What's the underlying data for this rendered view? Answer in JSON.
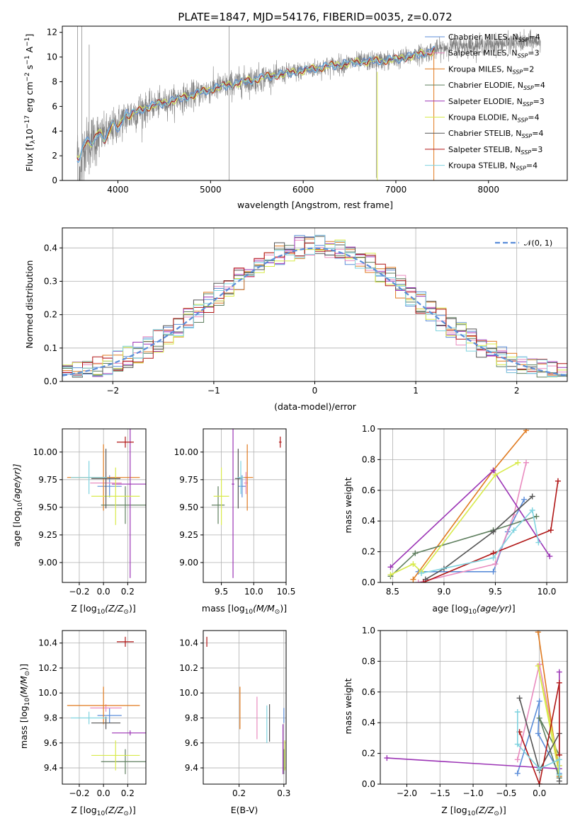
{
  "title": "PLATE=1847, MJD=54176, FIBERID=0035, z=0.072",
  "colors": {
    "chabrier_miles": "#5b8dd9",
    "salpeter_miles": "#e98bbf",
    "kroupa_miles": "#e07a1f",
    "chabrier_elodie": "#5f7f5f",
    "salpeter_elodie": "#9b33b5",
    "kroupa_elodie": "#d8ea4a",
    "chabrier_stelib": "#555555",
    "salpeter_stelib": "#b01515",
    "kroupa_stelib": "#7fd3df",
    "data": "#808080",
    "normal": "#5b8dd9"
  },
  "legend_labels": [
    "Chabrier MILES, N",
    "Salpeter MILES, N",
    "Kroupa MILES, N",
    "Chabrier ELODIE, N",
    "Salpeter ELODIE, N",
    "Kroupa ELODIE, N",
    "Chabrier STELIB, N",
    "Salpeter STELIB, N",
    "Kroupa STELIB, N"
  ],
  "legend_sub": "SSP",
  "legend_nssp": [
    "=4",
    "=3",
    "=2",
    "=4",
    "=3",
    "=4",
    "=4",
    "=3",
    "=4"
  ],
  "normal_label": "𝒩(0, 1)",
  "axes": {
    "spec_ylabel": "Flux [f",
    "spec_ylabel_sub": "λ",
    "spec_ylabel_rest": "10",
    "spec_ylabel_exp": "−17",
    "spec_ylabel_unit": " erg cm",
    "spec_ylabel_unit_exp": "−2",
    "spec_ylabel_s": " s",
    "spec_ylabel_s_exp": "−1",
    "spec_ylabel_A": " A",
    "spec_ylabel_A_exp": "−1",
    "spec_ylabel_end": "]",
    "spec_xlabel": "wavelength [Angstrom, rest frame]",
    "hist_ylabel": "Normed distribution",
    "hist_xlabel": "(data-model)/error",
    "age_ylabel_pre": "age  [log",
    "age_ylabel_sub": "10",
    "age_ylabel_post": "(age/yr)]",
    "Z_xlabel_pre": "Z [log",
    "Z_xlabel_sub": "10",
    "Z_xlabel_post": "(Z/Z",
    "Z_xlabel_end": ")]",
    "mass_label_pre": "mass [log",
    "mass_label_sub": "10",
    "mass_label_post": "(M/M",
    "mass_label_end": ")]",
    "sun": "⊙",
    "mw_ylabel": "mass weight",
    "ebv_xlabel": "E(B-V)"
  },
  "chart_data": [
    {
      "type": "line",
      "title": "PLATE=1847, MJD=54176, FIBERID=0035, z=0.072",
      "xlabel": "wavelength [Angstrom, rest frame]",
      "ylabel": "Flux [f_λ 10^-17 erg cm^-2 s^-1 A^-1]",
      "xlim": [
        3400,
        8850
      ],
      "ylim": [
        0,
        12.5
      ],
      "xticks": [
        4000,
        5000,
        6000,
        7000,
        8000
      ],
      "yticks": [
        0,
        2,
        4,
        6,
        8,
        10,
        12
      ],
      "data_range": [
        3560,
        8560
      ],
      "continuum": [
        [
          3560,
          2.1
        ],
        [
          3700,
          3.2
        ],
        [
          3900,
          3.9
        ],
        [
          4000,
          4.6
        ],
        [
          4100,
          5.2
        ],
        [
          4300,
          5.9
        ],
        [
          4500,
          6.3
        ],
        [
          4800,
          6.9
        ],
        [
          5000,
          7.4
        ],
        [
          5300,
          7.9
        ],
        [
          5600,
          8.4
        ],
        [
          6000,
          8.9
        ],
        [
          6300,
          9.3
        ],
        [
          6600,
          9.6
        ],
        [
          7000,
          9.8
        ],
        [
          7300,
          10.3
        ],
        [
          7600,
          10.9
        ],
        [
          8000,
          11.0
        ],
        [
          8560,
          11.3
        ]
      ],
      "model_end": 7420,
      "grid": false,
      "legend": "upper right"
    },
    {
      "type": "bar",
      "xlabel": "(data-model)/error",
      "ylabel": "Normed distribution",
      "xlim": [
        -2.5,
        2.5
      ],
      "ylim": [
        0,
        0.46
      ],
      "xticks": [
        -2,
        -1,
        0,
        1,
        2
      ],
      "yticks": [
        0.0,
        0.1,
        0.2,
        0.3,
        0.4
      ],
      "bin_width": 0.1,
      "overlay": "normal distribution N(0,1)",
      "grid": true,
      "legend": "upper right"
    },
    {
      "type": "scatter",
      "xlabel": "Z [log10(Z/Z⊙)]",
      "ylabel": "age [log10(age/yr)]",
      "xlim": [
        -0.34,
        0.35
      ],
      "ylim": [
        8.82,
        10.21
      ],
      "xticks": [
        -0.2,
        0.0,
        0.2
      ],
      "yticks": [
        9.0,
        9.25,
        9.5,
        9.75,
        10.0
      ],
      "series": [
        {
          "key": "chabrier_miles",
          "x": 0.05,
          "xe": 0.1,
          "y": 9.69,
          "ye": 0.1
        },
        {
          "key": "salpeter_miles",
          "x": 0.02,
          "xe": 0.13,
          "y": 9.72,
          "ye": 0.1
        },
        {
          "key": "kroupa_miles",
          "x": 0.0,
          "xe": 0.3,
          "y": 9.77,
          "ye": 0.3
        },
        {
          "key": "chabrier_elodie",
          "x": 0.18,
          "xe": 0.2,
          "y": 9.52,
          "ye": 0.17
        },
        {
          "key": "salpeter_elodie",
          "x": 0.22,
          "xe": 0.15,
          "y": 9.71,
          "ye": 0.85
        },
        {
          "key": "kroupa_elodie",
          "x": 0.1,
          "xe": 0.2,
          "y": 9.6,
          "ye": 0.26
        },
        {
          "key": "chabrier_stelib",
          "x": 0.02,
          "xe": 0.12,
          "y": 9.76,
          "ye": 0.27
        },
        {
          "key": "salpeter_stelib",
          "x": 0.18,
          "xe": 0.07,
          "y": 10.09,
          "ye": 0.05
        },
        {
          "key": "kroupa_stelib",
          "x": -0.12,
          "xe": 0.15,
          "y": 9.77,
          "ye": 0.15
        }
      ]
    },
    {
      "type": "scatter",
      "xlabel": "mass [log10(M/M⊙)]",
      "ylabel": "",
      "xlim": [
        9.22,
        10.5
      ],
      "ylim": [
        8.82,
        10.21
      ],
      "xticks": [
        9.5,
        10.0,
        10.5
      ],
      "yticks": [
        9.0,
        9.25,
        9.5,
        9.75,
        10.0
      ],
      "series": [
        {
          "key": "chabrier_miles",
          "x": 9.82,
          "xe": 0.06,
          "y": 9.69,
          "ye": 0.1
        },
        {
          "key": "salpeter_miles",
          "x": 9.88,
          "xe": 0.03,
          "y": 9.72,
          "ye": 0.1
        },
        {
          "key": "kroupa_miles",
          "x": 9.9,
          "xe": 0.09,
          "y": 9.77,
          "ye": 0.3
        },
        {
          "key": "chabrier_elodie",
          "x": 9.45,
          "xe": 0.1,
          "y": 9.52,
          "ye": 0.17
        },
        {
          "key": "salpeter_elodie",
          "x": 9.68,
          "xe": 0.02,
          "y": 9.71,
          "ye": 0.85
        },
        {
          "key": "kroupa_elodie",
          "x": 9.5,
          "xe": 0.12,
          "y": 9.6,
          "ye": 0.26
        },
        {
          "key": "chabrier_stelib",
          "x": 9.76,
          "xe": 0.05,
          "y": 9.76,
          "ye": 0.27
        },
        {
          "key": "salpeter_stelib",
          "x": 10.41,
          "xe": 0.02,
          "y": 10.09,
          "ye": 0.05
        },
        {
          "key": "kroupa_stelib",
          "x": 9.8,
          "xe": 0.05,
          "y": 9.77,
          "ye": 0.15
        }
      ]
    },
    {
      "type": "line",
      "xlabel": "age [log10(age/yr)]",
      "ylabel": "mass weight",
      "xlim": [
        8.38,
        10.2
      ],
      "ylim": [
        0,
        1.0
      ],
      "xticks": [
        8.5,
        9.0,
        9.5,
        10.0
      ],
      "yticks": [
        0.0,
        0.2,
        0.4,
        0.6,
        0.8,
        1.0
      ],
      "series": [
        {
          "key": "chabrier_miles",
          "points": [
            [
              8.75,
              0.07
            ],
            [
              9.48,
              0.07
            ],
            [
              9.62,
              0.33
            ],
            [
              9.78,
              0.54
            ]
          ]
        },
        {
          "key": "salpeter_miles",
          "points": [
            [
              8.75,
              0.0
            ],
            [
              9.5,
              0.12
            ],
            [
              9.68,
              0.44
            ],
            [
              9.8,
              0.78
            ]
          ]
        },
        {
          "key": "kroupa_miles",
          "points": [
            [
              8.7,
              0.02
            ],
            [
              9.48,
              0.73
            ],
            [
              9.8,
              0.99
            ]
          ]
        },
        {
          "key": "chabrier_elodie",
          "points": [
            [
              8.48,
              0.04
            ],
            [
              8.72,
              0.19
            ],
            [
              9.48,
              0.34
            ],
            [
              9.9,
              0.43
            ]
          ]
        },
        {
          "key": "salpeter_elodie",
          "points": [
            [
              8.48,
              0.1
            ],
            [
              9.48,
              0.73
            ],
            [
              10.03,
              0.17
            ]
          ]
        },
        {
          "key": "kroupa_elodie",
          "points": [
            [
              8.48,
              0.05
            ],
            [
              8.7,
              0.12
            ],
            [
              8.78,
              0.07
            ],
            [
              9.5,
              0.7
            ],
            [
              9.72,
              0.78
            ]
          ]
        },
        {
          "key": "chabrier_stelib",
          "points": [
            [
              8.82,
              0.02
            ],
            [
              9.0,
              0.09
            ],
            [
              9.48,
              0.33
            ],
            [
              9.86,
              0.56
            ]
          ]
        },
        {
          "key": "salpeter_stelib",
          "points": [
            [
              8.8,
              0.0
            ],
            [
              9.48,
              0.19
            ],
            [
              10.04,
              0.34
            ],
            [
              10.11,
              0.66
            ]
          ]
        },
        {
          "key": "kroupa_stelib",
          "points": [
            [
              8.78,
              0.06
            ],
            [
              9.48,
              0.16
            ],
            [
              9.68,
              0.34
            ],
            [
              9.86,
              0.47
            ],
            [
              9.92,
              0.26
            ]
          ]
        }
      ]
    },
    {
      "type": "scatter",
      "xlabel": "Z [log10(Z/Z⊙)]",
      "ylabel": "mass [log10(M/M⊙)]",
      "xlim": [
        -0.34,
        0.35
      ],
      "ylim": [
        9.27,
        10.5
      ],
      "xticks": [
        -0.2,
        0.0,
        0.2
      ],
      "yticks": [
        9.4,
        9.6,
        9.8,
        10.0,
        10.2,
        10.4
      ],
      "series": [
        {
          "key": "chabrier_miles",
          "x": 0.05,
          "xe": 0.1,
          "y": 9.82,
          "ye": 0.06
        },
        {
          "key": "salpeter_miles",
          "x": 0.02,
          "xe": 0.13,
          "y": 9.88,
          "ye": 0.03
        },
        {
          "key": "kroupa_miles",
          "x": 0.0,
          "xe": 0.3,
          "y": 9.9,
          "ye": 0.15
        },
        {
          "key": "chabrier_elodie",
          "x": 0.18,
          "xe": 0.2,
          "y": 9.45,
          "ye": 0.1
        },
        {
          "key": "salpeter_elodie",
          "x": 0.22,
          "xe": 0.15,
          "y": 9.68,
          "ye": 0.02
        },
        {
          "key": "kroupa_elodie",
          "x": 0.1,
          "xe": 0.2,
          "y": 9.5,
          "ye": 0.12
        },
        {
          "key": "chabrier_stelib",
          "x": 0.02,
          "xe": 0.12,
          "y": 9.76,
          "ye": 0.05
        },
        {
          "key": "salpeter_stelib",
          "x": 0.18,
          "xe": 0.07,
          "y": 10.41,
          "ye": 0.04
        },
        {
          "key": "kroupa_stelib",
          "x": -0.12,
          "xe": 0.15,
          "y": 9.8,
          "ye": 0.05
        }
      ]
    },
    {
      "type": "scatter",
      "xlabel": "E(B-V)",
      "ylabel": "",
      "xlim": [
        0.12,
        0.305
      ],
      "ylim": [
        9.27,
        10.5
      ],
      "xticks": [
        0.2,
        0.3
      ],
      "yticks": [
        9.4,
        9.6,
        9.8,
        10.0,
        10.2,
        10.4
      ],
      "series": [
        {
          "key": "chabrier_miles",
          "x": 0.3,
          "xe": 0.0,
          "y": 9.82,
          "ye": 0.06
        },
        {
          "key": "salpeter_miles",
          "x": 0.24,
          "xe": 0.0,
          "y": 9.8,
          "ye": 0.17
        },
        {
          "key": "kroupa_miles",
          "x": 0.202,
          "xe": 0.0,
          "y": 9.88,
          "ye": 0.17
        },
        {
          "key": "chabrier_elodie",
          "x": 0.3,
          "xe": 0.0,
          "y": 9.45,
          "ye": 0.1
        },
        {
          "key": "salpeter_elodie",
          "x": 0.298,
          "xe": 0.0,
          "y": 9.55,
          "ye": 0.2
        },
        {
          "key": "kroupa_elodie",
          "x": 0.302,
          "xe": 0.0,
          "y": 9.5,
          "ye": 0.12
        },
        {
          "key": "chabrier_stelib",
          "x": 0.268,
          "xe": 0.0,
          "y": 9.76,
          "ye": 0.15
        },
        {
          "key": "salpeter_stelib",
          "x": 0.128,
          "xe": 0.0,
          "y": 10.41,
          "ye": 0.04
        },
        {
          "key": "kroupa_stelib",
          "x": 0.262,
          "xe": 0.0,
          "y": 9.75,
          "ye": 0.15
        }
      ]
    },
    {
      "type": "line",
      "xlabel": "Z [log10(Z/Z⊙)]",
      "ylabel": "mass weight",
      "xlim": [
        -2.4,
        0.42
      ],
      "ylim": [
        0,
        1.0
      ],
      "xticks": [
        -2.0,
        -1.5,
        -1.0,
        -0.5,
        0.0
      ],
      "yticks": [
        0.0,
        0.2,
        0.4,
        0.6,
        0.8,
        1.0
      ],
      "series": [
        {
          "key": "chabrier_miles",
          "points": [
            [
              -0.33,
              0.07
            ],
            [
              0.0,
              0.54
            ],
            [
              -0.02,
              0.33
            ],
            [
              0.3,
              0.07
            ]
          ]
        },
        {
          "key": "salpeter_miles",
          "points": [
            [
              -0.33,
              0.16
            ],
            [
              0.0,
              0.78
            ],
            [
              0.3,
              0.12
            ]
          ]
        },
        {
          "key": "kroupa_miles",
          "points": [
            [
              -0.02,
              0.99
            ],
            [
              0.3,
              0.05
            ]
          ]
        },
        {
          "key": "chabrier_elodie",
          "points": [
            [
              0.3,
              0.04
            ],
            [
              0.0,
              0.43
            ],
            [
              0.3,
              0.19
            ]
          ]
        },
        {
          "key": "salpeter_elodie",
          "points": [
            [
              -2.3,
              0.17
            ],
            [
              0.3,
              0.1
            ],
            [
              0.3,
              0.73
            ]
          ]
        },
        {
          "key": "kroupa_elodie",
          "points": [
            [
              0.3,
              0.12
            ],
            [
              -0.02,
              0.77
            ],
            [
              0.3,
              0.06
            ]
          ]
        },
        {
          "key": "chabrier_stelib",
          "points": [
            [
              -0.3,
              0.56
            ],
            [
              0.0,
              0.09
            ],
            [
              0.3,
              0.33
            ],
            [
              0.3,
              0.02
            ]
          ]
        },
        {
          "key": "salpeter_stelib",
          "points": [
            [
              -0.3,
              0.34
            ],
            [
              0.0,
              0.0
            ],
            [
              0.3,
              0.66
            ],
            [
              0.3,
              0.19
            ]
          ]
        },
        {
          "key": "kroupa_stelib",
          "points": [
            [
              -0.33,
              0.47
            ],
            [
              -0.33,
              0.26
            ],
            [
              0.0,
              0.1
            ],
            [
              0.3,
              0.16
            ],
            [
              0.3,
              0.06
            ]
          ]
        }
      ]
    }
  ]
}
